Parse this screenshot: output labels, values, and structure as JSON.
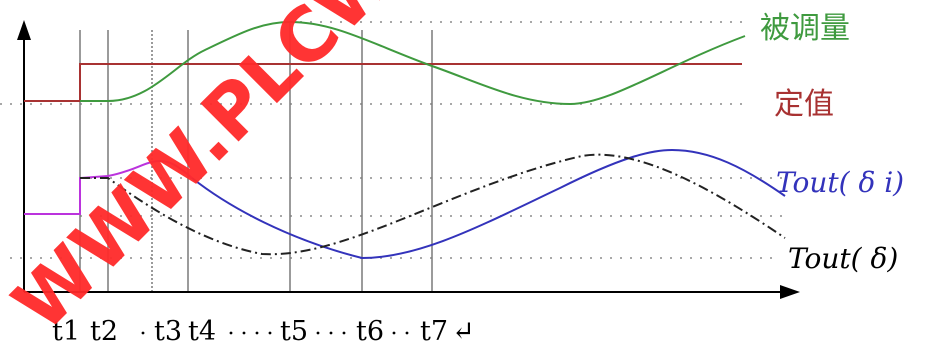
{
  "labels": {
    "controlled": "被调量",
    "setpoint": "定值",
    "tout_delta_i": "Tout( δ i)",
    "tout_delta": "Tout( δ)"
  },
  "time_marks": [
    "t1",
    "t2",
    "t3",
    "t4",
    "t5",
    "t6",
    "t7"
  ],
  "return_glyph": "↵",
  "watermark": "WWW.PLCWORLD",
  "colors": {
    "axis": "#000000",
    "grid": "#a8a8a8",
    "vline": "#7a7a7a",
    "controlled": "#3f9a3f",
    "setpoint": "#a83232",
    "tout_delta_i": "#3333bb",
    "tout_delta_i_early": "#bb33dd",
    "tout_delta": "#222222",
    "watermark": "#ff2a2a"
  }
}
